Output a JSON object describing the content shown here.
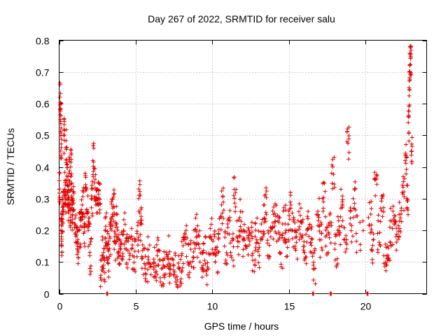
{
  "chart_data": {
    "type": "scatter",
    "title": "Day 267 of 2022, SRMTID for receiver salu",
    "xlabel": "GPS time / hours",
    "ylabel": "SRMTID / TECUs",
    "xlim": [
      0,
      24
    ],
    "ylim": [
      0,
      0.8
    ],
    "xticks": [
      0,
      5,
      10,
      15,
      20
    ],
    "xtick_labels": [
      "0",
      "5",
      "10",
      "15",
      "20"
    ],
    "yticks": [
      0,
      0.1,
      0.2,
      0.3,
      0.4,
      0.5,
      0.6,
      0.7,
      0.8
    ],
    "ytick_labels": [
      "0",
      "0.1",
      "0.2",
      "0.3",
      "0.4",
      "0.5",
      "0.6",
      "0.7",
      "0.8"
    ],
    "grid": true,
    "marker": "+",
    "marker_color": "#e00000",
    "series": [
      {
        "name": "SRMTID",
        "points": [
          [
            0.0,
            0.33
          ],
          [
            0.05,
            0.62
          ],
          [
            0.08,
            0.55
          ],
          [
            0.1,
            0.45
          ],
          [
            0.12,
            0.2
          ],
          [
            0.15,
            0.18
          ],
          [
            0.2,
            0.25
          ],
          [
            0.25,
            0.28
          ],
          [
            0.3,
            0.5
          ],
          [
            0.35,
            0.33
          ],
          [
            0.4,
            0.3
          ],
          [
            0.45,
            0.46
          ],
          [
            0.5,
            0.35
          ],
          [
            0.55,
            0.32
          ],
          [
            0.6,
            0.28
          ],
          [
            0.65,
            0.38
          ],
          [
            0.7,
            0.27
          ],
          [
            0.75,
            0.4
          ],
          [
            0.8,
            0.33
          ],
          [
            0.85,
            0.25
          ],
          [
            0.9,
            0.3
          ],
          [
            1.0,
            0.22
          ],
          [
            1.1,
            0.18
          ],
          [
            1.2,
            0.15
          ],
          [
            1.3,
            0.2
          ],
          [
            1.4,
            0.24
          ],
          [
            1.5,
            0.28
          ],
          [
            1.6,
            0.19
          ],
          [
            1.7,
            0.38
          ],
          [
            1.8,
            0.26
          ],
          [
            1.9,
            0.2
          ],
          [
            2.0,
            0.12
          ],
          [
            2.1,
            0.3
          ],
          [
            2.2,
            0.42
          ],
          [
            2.3,
            0.35
          ],
          [
            2.4,
            0.28
          ],
          [
            2.5,
            0.33
          ],
          [
            2.6,
            0.3
          ],
          [
            2.7,
            0.05
          ],
          [
            2.8,
            0.12
          ],
          [
            2.9,
            0.09
          ],
          [
            3.0,
            0.2
          ],
          [
            3.1,
            0.15
          ],
          [
            3.2,
            0.11
          ],
          [
            3.3,
            0.18
          ],
          [
            3.4,
            0.24
          ],
          [
            3.5,
            0.27
          ],
          [
            3.6,
            0.14
          ],
          [
            3.7,
            0.22
          ],
          [
            3.8,
            0.17
          ],
          [
            3.9,
            0.13
          ],
          [
            4.0,
            0.16
          ],
          [
            4.2,
            0.2
          ],
          [
            4.4,
            0.14
          ],
          [
            4.6,
            0.18
          ],
          [
            4.8,
            0.12
          ],
          [
            5.0,
            0.17
          ],
          [
            5.2,
            0.3
          ],
          [
            5.3,
            0.22
          ],
          [
            5.4,
            0.11
          ],
          [
            5.6,
            0.08
          ],
          [
            5.8,
            0.14
          ],
          [
            6.0,
            0.06
          ],
          [
            6.2,
            0.1
          ],
          [
            6.4,
            0.12
          ],
          [
            6.6,
            0.05
          ],
          [
            6.8,
            0.09
          ],
          [
            7.0,
            0.13
          ],
          [
            7.2,
            0.08
          ],
          [
            7.4,
            0.11
          ],
          [
            7.6,
            0.05
          ],
          [
            7.8,
            0.08
          ],
          [
            8.0,
            0.12
          ],
          [
            8.2,
            0.17
          ],
          [
            8.4,
            0.1
          ],
          [
            8.6,
            0.14
          ],
          [
            8.8,
            0.2
          ],
          [
            9.0,
            0.16
          ],
          [
            9.2,
            0.1
          ],
          [
            9.4,
            0.13
          ],
          [
            9.6,
            0.07
          ],
          [
            9.8,
            0.18
          ],
          [
            10.0,
            0.14
          ],
          [
            10.2,
            0.1
          ],
          [
            10.4,
            0.19
          ],
          [
            10.6,
            0.28
          ],
          [
            10.8,
            0.15
          ],
          [
            11.0,
            0.22
          ],
          [
            11.2,
            0.13
          ],
          [
            11.4,
            0.31
          ],
          [
            11.6,
            0.18
          ],
          [
            11.8,
            0.24
          ],
          [
            12.0,
            0.17
          ],
          [
            12.2,
            0.15
          ],
          [
            12.4,
            0.2
          ],
          [
            12.6,
            0.12
          ],
          [
            12.8,
            0.18
          ],
          [
            13.0,
            0.14
          ],
          [
            13.2,
            0.22
          ],
          [
            13.4,
            0.28
          ],
          [
            13.6,
            0.16
          ],
          [
            13.8,
            0.21
          ],
          [
            14.0,
            0.25
          ],
          [
            14.2,
            0.19
          ],
          [
            14.4,
            0.13
          ],
          [
            14.6,
            0.22
          ],
          [
            14.8,
            0.17
          ],
          [
            15.0,
            0.26
          ],
          [
            15.2,
            0.2
          ],
          [
            15.4,
            0.15
          ],
          [
            15.6,
            0.23
          ],
          [
            15.8,
            0.18
          ],
          [
            16.0,
            0.13
          ],
          [
            16.2,
            0.2
          ],
          [
            16.4,
            0.16
          ],
          [
            16.6,
            0.09
          ],
          [
            16.8,
            0.25
          ],
          [
            17.0,
            0.17
          ],
          [
            17.2,
            0.3
          ],
          [
            17.4,
            0.18
          ],
          [
            17.6,
            0.22
          ],
          [
            17.8,
            0.38
          ],
          [
            18.0,
            0.14
          ],
          [
            18.2,
            0.2
          ],
          [
            18.4,
            0.27
          ],
          [
            18.6,
            0.17
          ],
          [
            18.8,
            0.48
          ],
          [
            19.0,
            0.22
          ],
          [
            19.2,
            0.3
          ],
          [
            19.4,
            0.19
          ],
          [
            20.2,
            0.24
          ],
          [
            20.4,
            0.14
          ],
          [
            20.6,
            0.36
          ],
          [
            20.8,
            0.19
          ],
          [
            21.0,
            0.27
          ],
          [
            21.2,
            0.12
          ],
          [
            21.4,
            0.09
          ],
          [
            21.6,
            0.21
          ],
          [
            21.8,
            0.26
          ],
          [
            22.0,
            0.18
          ],
          [
            22.2,
            0.25
          ],
          [
            22.4,
            0.32
          ],
          [
            22.6,
            0.42
          ],
          [
            22.7,
            0.3
          ],
          [
            22.8,
            0.54
          ],
          [
            22.85,
            0.65
          ],
          [
            22.9,
            0.72
          ],
          [
            22.95,
            0.75
          ],
          [
            23.0,
            0.45
          ]
        ]
      }
    ],
    "zero_points_x": [
      3.1,
      16.55,
      17.7,
      20.1
    ]
  }
}
